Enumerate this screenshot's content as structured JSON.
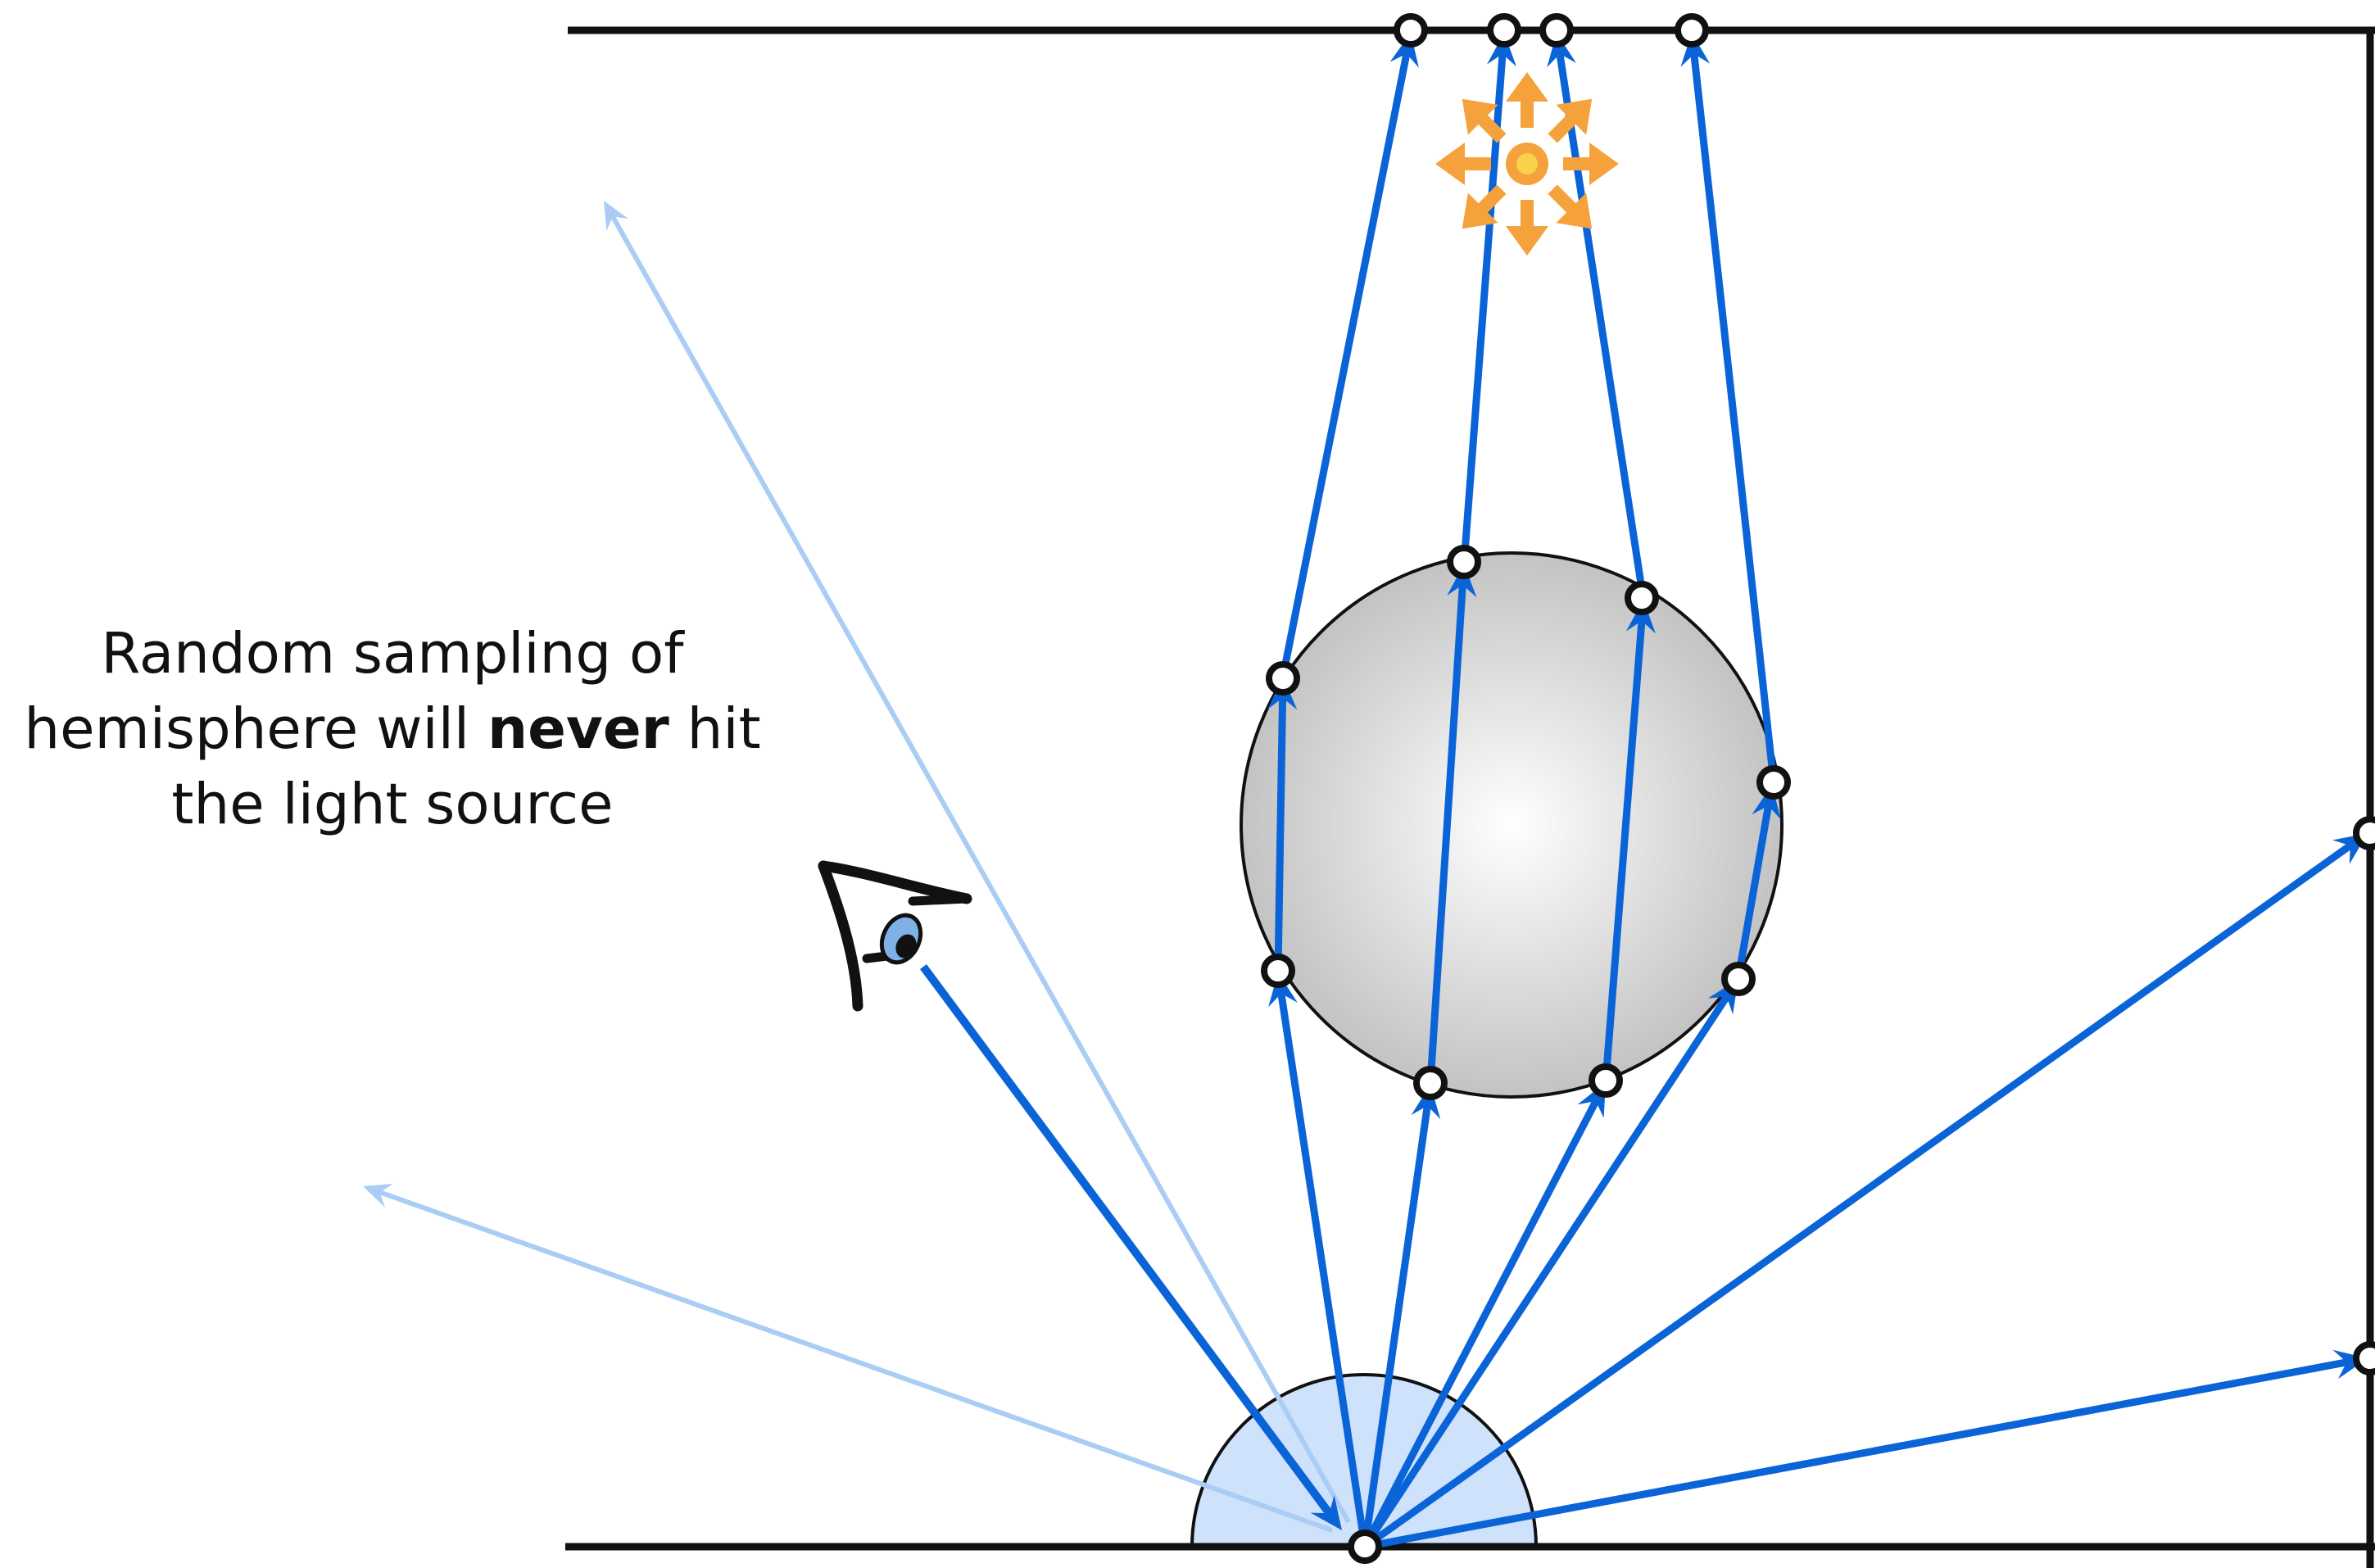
{
  "caption": {
    "line1": "Random sampling of",
    "line2_before": "hemisphere will ",
    "line2_bold": "never",
    "line2_after": " hit",
    "line3": "the light source"
  },
  "colors": {
    "ray": "#0a64d8",
    "ray_faint": "#a9cdf4",
    "wall": "#111111",
    "hemisphere_fill": "#cfe2fb",
    "sphere_gradient": [
      "#ffffff",
      "#bcbcbc"
    ],
    "light": "#f5a23c",
    "light_center": "#f8d24a"
  },
  "icons": [
    "eye-icon",
    "light-source-icon",
    "hemisphere",
    "sphere"
  ]
}
